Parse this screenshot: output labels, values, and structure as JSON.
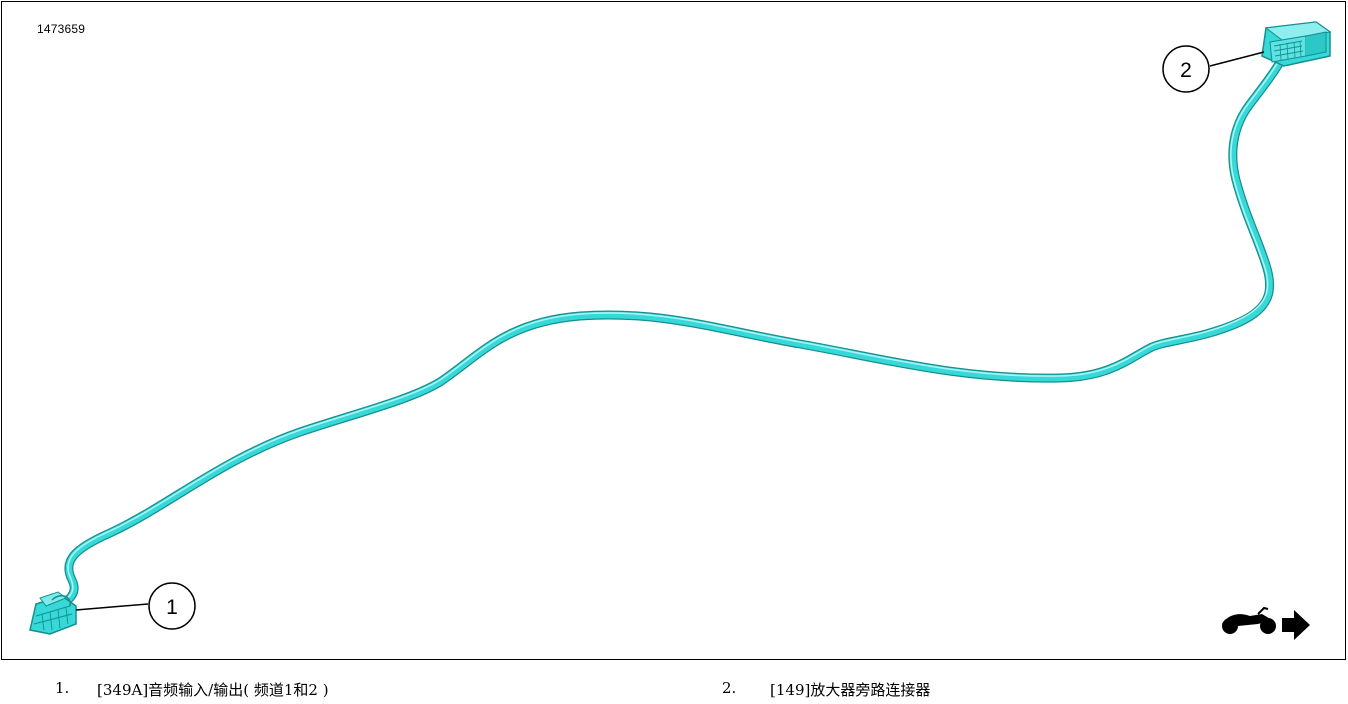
{
  "figure_id": "1473659",
  "colors": {
    "harness": "#33d6d6",
    "harness_shadow": "#1a9a9a",
    "harness_highlight": "#aef4f4",
    "ink": "#000000"
  },
  "callouts": [
    {
      "number": "1",
      "target": "connector-349A"
    },
    {
      "number": "2",
      "target": "connector-149"
    }
  ],
  "orientation_icon": "motorcycle-forward-arrow-icon",
  "legend": [
    {
      "number": "1.",
      "text": "[349A]音频输入/输出( 频道1和2 )"
    },
    {
      "number": "2.",
      "text": "[149]放大器旁路连接器"
    }
  ]
}
